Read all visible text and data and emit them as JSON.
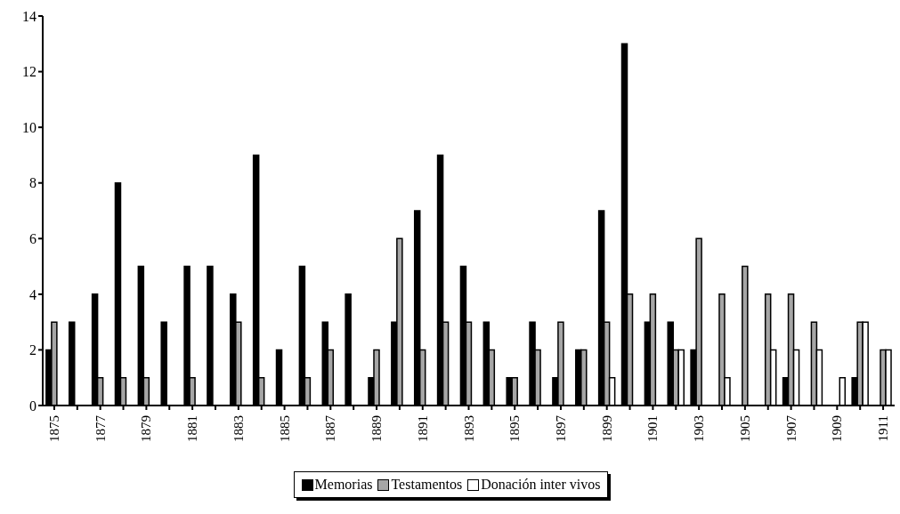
{
  "chart_data": {
    "type": "bar",
    "categories": [
      "1875",
      null,
      "1877",
      null,
      "1879",
      null,
      "1881",
      null,
      "1883",
      null,
      "1885",
      null,
      "1887",
      null,
      "1889",
      null,
      "1891",
      null,
      "1893",
      null,
      "1895",
      null,
      "1897",
      null,
      "1899",
      null,
      "1901",
      null,
      "1903",
      null,
      "1905",
      null,
      "1907",
      null,
      "1909",
      null,
      "1911"
    ],
    "series": [
      {
        "name": "Memorias",
        "color": "#000000",
        "values": [
          2,
          3,
          4,
          8,
          5,
          3,
          5,
          5,
          4,
          9,
          2,
          5,
          3,
          4,
          1,
          3,
          7,
          9,
          5,
          3,
          1,
          3,
          1,
          2,
          7,
          13,
          3,
          3,
          2,
          0,
          0,
          0,
          1,
          0,
          0,
          1,
          0
        ]
      },
      {
        "name": "Testamentos",
        "color": "#a6a6a6",
        "values": [
          3,
          0,
          1,
          1,
          1,
          0,
          1,
          0,
          3,
          1,
          0,
          1,
          2,
          0,
          2,
          6,
          2,
          3,
          3,
          2,
          1,
          2,
          3,
          2,
          3,
          4,
          4,
          2,
          6,
          4,
          5,
          4,
          4,
          3,
          0,
          3,
          2
        ]
      },
      {
        "name": "Donación inter vivos",
        "color": "#ffffff",
        "values": [
          0,
          0,
          0,
          0,
          0,
          0,
          0,
          0,
          0,
          0,
          0,
          0,
          0,
          0,
          0,
          0,
          0,
          0,
          0,
          0,
          0,
          0,
          0,
          0,
          1,
          0,
          0,
          2,
          0,
          1,
          0,
          2,
          2,
          2,
          1,
          3,
          2
        ]
      }
    ],
    "ylim": [
      0,
      14
    ],
    "yticks": [
      0,
      2,
      4,
      6,
      8,
      10,
      12,
      14
    ],
    "grid": false,
    "legend": "bottom"
  }
}
